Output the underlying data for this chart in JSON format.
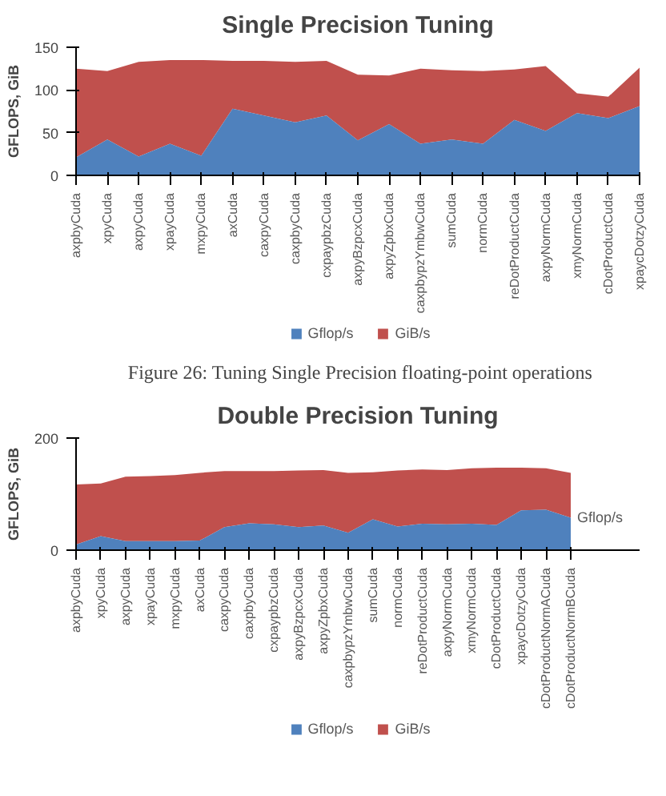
{
  "chart_data": [
    {
      "type": "area",
      "title": "Single Precision Tuning",
      "ylabel": "GFLOPS, GiB",
      "categories": [
        "axpbyCuda",
        "xpyCuda",
        "axpyCuda",
        "xpayCuda",
        "mxpyCuda",
        "axCuda",
        "caxpyCuda",
        "caxpbyCuda",
        "cxpaypbzCuda",
        "axpyBzpcxCuda",
        "axpyZpbxCuda",
        "caxpbypzYmbwCuda",
        "sumCuda",
        "normCuda",
        "reDotProductCuda",
        "axpyNormCuda",
        "xmyNormCuda",
        "cDotProductCuda",
        "xpaycDotzyCuda"
      ],
      "series": [
        {
          "name": "Gflop/s",
          "color": "#4f81bd",
          "values": [
            21,
            42,
            22,
            37,
            23,
            78,
            70,
            62,
            70,
            41,
            60,
            37,
            42,
            37,
            65,
            52,
            73,
            67,
            81
          ]
        },
        {
          "name": "GiB/s",
          "color": "#c0504d",
          "values": [
            125,
            122,
            133,
            135,
            135,
            134,
            134,
            133,
            134,
            118,
            117,
            125,
            123,
            122,
            124,
            128,
            96,
            92,
            126
          ]
        }
      ],
      "ylim": [
        0,
        150
      ],
      "yticks": [
        0,
        50,
        100,
        150
      ],
      "legend": "bottom",
      "annotations": [
        "Figure 26: Tuning Single Precision floating-point operations"
      ]
    },
    {
      "type": "area",
      "title": "Double Precision Tuning",
      "ylabel": "GFLOPS, GiB",
      "categories": [
        "axpbyCuda",
        "xpyCuda",
        "axpyCuda",
        "xpayCuda",
        "mxpyCuda",
        "axCuda",
        "caxpyCuda",
        "caxpbyCuda",
        "cxpaypbzCuda",
        "axpyBzpcxCuda",
        "axpyZpbxCuda",
        "caxpbypzYmbwCuda",
        "sumCuda",
        "normCuda",
        "reDotProductCuda",
        "axpyNormCuda",
        "xmyNormCuda",
        "cDotProductCuda",
        "xpaycDotzyCuda",
        "cDotProductNormACuda",
        "cDotProductNormBCuda"
      ],
      "series": [
        {
          "name": "Gflop/s",
          "color": "#4f81bd",
          "values": [
            10,
            25,
            16,
            16,
            16,
            17,
            41,
            48,
            46,
            41,
            44,
            31,
            55,
            42,
            47,
            46,
            47,
            45,
            71,
            72,
            58
          ]
        },
        {
          "name": "GiB/s",
          "color": "#c0504d",
          "values": [
            117,
            119,
            131,
            132,
            134,
            138,
            141,
            141,
            141,
            142,
            143,
            138,
            139,
            142,
            144,
            143,
            146,
            147,
            147,
            146,
            138
          ]
        }
      ],
      "ylim": [
        0,
        200
      ],
      "yticks": [
        0,
        200
      ],
      "legend": "bottom",
      "annotations": [
        {
          "text": "Gflop/s",
          "x": "cDotProductNormBCuda",
          "y": 58
        }
      ]
    }
  ]
}
